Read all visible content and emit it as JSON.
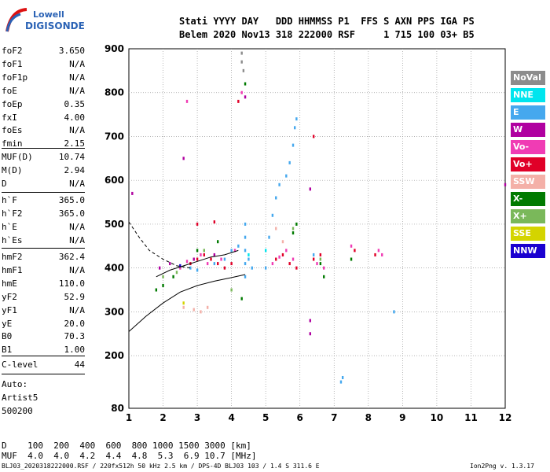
{
  "logo": {
    "line1": "Lowell",
    "line2": "DIGISONDE"
  },
  "header": {
    "row1": "Stati YYYY DAY   DDD HHMMSS P1  FFS S AXN PPS IGA PS",
    "row2": "Belem 2020 Nov13 318 222000 RSF     1 715 100 03+ B5"
  },
  "params": {
    "group1": [
      {
        "k": "foF2",
        "v": "3.650"
      },
      {
        "k": "foF1",
        "v": "N/A"
      },
      {
        "k": "foF1p",
        "v": "N/A"
      },
      {
        "k": "foE",
        "v": "N/A"
      },
      {
        "k": "foEp",
        "v": "0.35"
      },
      {
        "k": "fxI",
        "v": "4.00"
      },
      {
        "k": "foEs",
        "v": "N/A"
      },
      {
        "k": "fmin",
        "v": "2.15"
      }
    ],
    "group2": [
      {
        "k": "MUF(D)",
        "v": "10.74"
      },
      {
        "k": "M(D)",
        "v": "2.94"
      },
      {
        "k": "D",
        "v": "N/A"
      }
    ],
    "group3": [
      {
        "k": "h`F",
        "v": "365.0"
      },
      {
        "k": "h`F2",
        "v": "365.0"
      },
      {
        "k": "h`E",
        "v": "N/A"
      },
      {
        "k": "h`Es",
        "v": "N/A"
      }
    ],
    "group4": [
      {
        "k": "hmF2",
        "v": "362.4"
      },
      {
        "k": "hmF1",
        "v": "N/A"
      },
      {
        "k": "hmE",
        "v": "110.0"
      },
      {
        "k": "yF2",
        "v": "52.9"
      },
      {
        "k": "yF1",
        "v": "N/A"
      },
      {
        "k": "yE",
        "v": "20.0"
      },
      {
        "k": "B0",
        "v": "70.3"
      },
      {
        "k": "B1",
        "v": "1.00"
      }
    ],
    "group5": [
      {
        "k": "C-level",
        "v": "44"
      }
    ],
    "auto": [
      "Auto:",
      "Artist5",
      "500200"
    ]
  },
  "legend": [
    {
      "label": "NoVal",
      "color": "#8c8c8c"
    },
    {
      "label": "NNE",
      "color": "#00e5ee"
    },
    {
      "label": "E",
      "color": "#45a8ee"
    },
    {
      "label": "W",
      "color": "#b000a0"
    },
    {
      "label": "Vo-",
      "color": "#f03cb4"
    },
    {
      "label": "Vo+",
      "color": "#e00028"
    },
    {
      "label": "SSW",
      "color": "#f4b0a8"
    },
    {
      "label": "X-",
      "color": "#007a00"
    },
    {
      "label": "X+",
      "color": "#7ab85a"
    },
    {
      "label": "SSE",
      "color": "#d4d400"
    },
    {
      "label": "NNW",
      "color": "#1a00d0"
    }
  ],
  "bottom": {
    "d_row": "D    100  200  400  600  800 1000 1500 3000 [km]",
    "muf_row": "MUF  4.0  4.0  4.2  4.4  4.8  5.3  6.9 10.7 [MHz]",
    "footer_left": "BLJ03_2020318222000.RSF / 220fx512h 50 kHz 2.5 km / DPS-4D BLJ03 103 / 1.4 S 311.6 E",
    "footer_right": "Ion2Png v. 1.3.17"
  },
  "chart_data": {
    "type": "scatter",
    "xlabel": "",
    "ylabel": "",
    "xlim": [
      1,
      12
    ],
    "ylim": [
      80,
      900
    ],
    "x_ticks": [
      1,
      2,
      3,
      4,
      5,
      6,
      7,
      8,
      9,
      10,
      11,
      12
    ],
    "y_ticks": [
      80,
      200,
      300,
      400,
      500,
      600,
      700,
      800,
      900
    ],
    "grid": true,
    "series": [
      {
        "name": "E",
        "color": "#45a8ee",
        "points": [
          [
            4.4,
            380
          ],
          [
            4.4,
            410
          ],
          [
            4.4,
            440
          ],
          [
            4.4,
            470
          ],
          [
            4.4,
            500
          ],
          [
            4.5,
            420
          ],
          [
            4.6,
            400
          ],
          [
            5.0,
            400
          ],
          [
            5.1,
            470
          ],
          [
            5.2,
            520
          ],
          [
            5.3,
            560
          ],
          [
            5.4,
            590
          ],
          [
            5.6,
            610
          ],
          [
            5.7,
            640
          ],
          [
            5.8,
            680
          ],
          [
            5.85,
            720
          ],
          [
            5.9,
            740
          ],
          [
            3.5,
            410
          ],
          [
            3.8,
            420
          ],
          [
            4.0,
            440
          ],
          [
            4.2,
            450
          ],
          [
            2.8,
            400
          ],
          [
            3.0,
            395
          ],
          [
            7.2,
            140
          ],
          [
            7.25,
            150
          ],
          [
            8.75,
            300
          ],
          [
            6.4,
            430
          ]
        ]
      },
      {
        "name": "Vo+",
        "color": "#e00028",
        "points": [
          [
            2.8,
            410
          ],
          [
            3.0,
            420
          ],
          [
            3.2,
            430
          ],
          [
            3.4,
            420
          ],
          [
            3.6,
            410
          ],
          [
            3.8,
            400
          ],
          [
            4.0,
            410
          ],
          [
            5.3,
            420
          ],
          [
            5.5,
            430
          ],
          [
            5.7,
            410
          ],
          [
            5.9,
            400
          ],
          [
            6.4,
            420
          ],
          [
            6.6,
            430
          ],
          [
            7.6,
            440
          ],
          [
            8.2,
            430
          ],
          [
            3.0,
            500
          ],
          [
            3.5,
            505
          ],
          [
            4.2,
            780
          ],
          [
            6.4,
            700
          ]
        ]
      },
      {
        "name": "Vo-",
        "color": "#f03cb4",
        "points": [
          [
            2.5,
            400
          ],
          [
            2.7,
            415
          ],
          [
            3.1,
            430
          ],
          [
            3.3,
            410
          ],
          [
            3.7,
            420
          ],
          [
            4.1,
            440
          ],
          [
            5.2,
            410
          ],
          [
            5.4,
            425
          ],
          [
            5.6,
            440
          ],
          [
            5.8,
            420
          ],
          [
            6.5,
            410
          ],
          [
            6.7,
            400
          ],
          [
            7.5,
            450
          ],
          [
            8.3,
            440
          ],
          [
            8.4,
            430
          ],
          [
            4.3,
            800
          ],
          [
            2.7,
            780
          ]
        ]
      },
      {
        "name": "W",
        "color": "#b000a0",
        "points": [
          [
            1.9,
            400
          ],
          [
            2.2,
            410
          ],
          [
            2.9,
            420
          ],
          [
            3.5,
            430
          ],
          [
            4.4,
            790
          ],
          [
            6.3,
            580
          ],
          [
            6.3,
            280
          ],
          [
            6.3,
            250
          ],
          [
            1.1,
            570
          ],
          [
            12,
            590
          ],
          [
            2.6,
            650
          ]
        ]
      },
      {
        "name": "X-",
        "color": "#007a00",
        "points": [
          [
            1.8,
            350
          ],
          [
            2.0,
            360
          ],
          [
            2.3,
            380
          ],
          [
            3.0,
            440
          ],
          [
            3.6,
            460
          ],
          [
            4.3,
            330
          ],
          [
            5.8,
            480
          ],
          [
            5.9,
            500
          ],
          [
            6.6,
            410
          ],
          [
            6.7,
            380
          ],
          [
            7.5,
            420
          ],
          [
            4.4,
            820
          ]
        ]
      },
      {
        "name": "X+",
        "color": "#7ab85a",
        "points": [
          [
            2.0,
            380
          ],
          [
            2.4,
            390
          ],
          [
            3.2,
            440
          ],
          [
            4.0,
            350
          ],
          [
            5.8,
            490
          ],
          [
            6.6,
            420
          ]
        ]
      },
      {
        "name": "SSW",
        "color": "#f4b0a8",
        "points": [
          [
            2.6,
            310
          ],
          [
            2.9,
            305
          ],
          [
            3.1,
            300
          ],
          [
            3.3,
            310
          ],
          [
            5.5,
            460
          ],
          [
            5.3,
            490
          ]
        ]
      },
      {
        "name": "NoVal",
        "color": "#8c8c8c",
        "points": [
          [
            4.3,
            870
          ],
          [
            4.35,
            850
          ],
          [
            4.3,
            890
          ]
        ]
      },
      {
        "name": "NNE",
        "color": "#00e5ee",
        "points": [
          [
            4.5,
            430
          ],
          [
            5.0,
            440
          ]
        ]
      },
      {
        "name": "SSE",
        "color": "#d4d400",
        "points": [
          [
            2.6,
            320
          ]
        ]
      },
      {
        "name": "NNW",
        "color": "#1a00d0",
        "points": [
          [
            2.5,
            405
          ]
        ]
      }
    ],
    "solid_curve": [
      [
        1,
        255
      ],
      [
        1.5,
        290
      ],
      [
        2,
        320
      ],
      [
        2.5,
        345
      ],
      [
        3,
        360
      ],
      [
        3.5,
        370
      ],
      [
        4,
        378
      ],
      [
        4.4,
        385
      ]
    ],
    "dashed_curve": [
      [
        1,
        505
      ],
      [
        1.3,
        470
      ],
      [
        1.6,
        440
      ],
      [
        2,
        420
      ],
      [
        2.4,
        405
      ],
      [
        2.8,
        400
      ]
    ],
    "trace_curve": [
      [
        1.8,
        380
      ],
      [
        2.2,
        395
      ],
      [
        2.6,
        405
      ],
      [
        3.0,
        415
      ],
      [
        3.4,
        425
      ],
      [
        3.8,
        430
      ],
      [
        4.2,
        440
      ]
    ]
  }
}
